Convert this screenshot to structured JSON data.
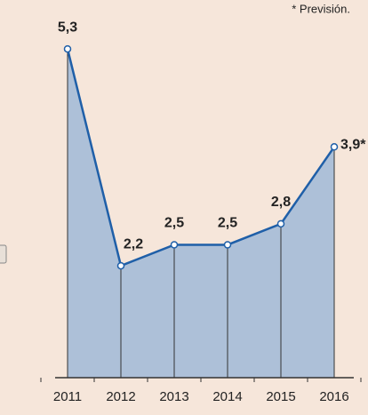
{
  "chart_data": {
    "type": "line",
    "annotation": "* Previsión.",
    "categories": [
      "2011",
      "2012",
      "2013",
      "2014",
      "2015",
      "2016"
    ],
    "values": [
      5.3,
      2.2,
      2.5,
      2.5,
      2.8,
      3.9
    ],
    "value_labels": [
      "5,3",
      "2,2",
      "2,5",
      "2,5",
      "2,8",
      "3,9*"
    ],
    "color": "#1f5fa8",
    "fill": "#adc0d8",
    "ylim": [
      0.6,
      6.0
    ]
  }
}
